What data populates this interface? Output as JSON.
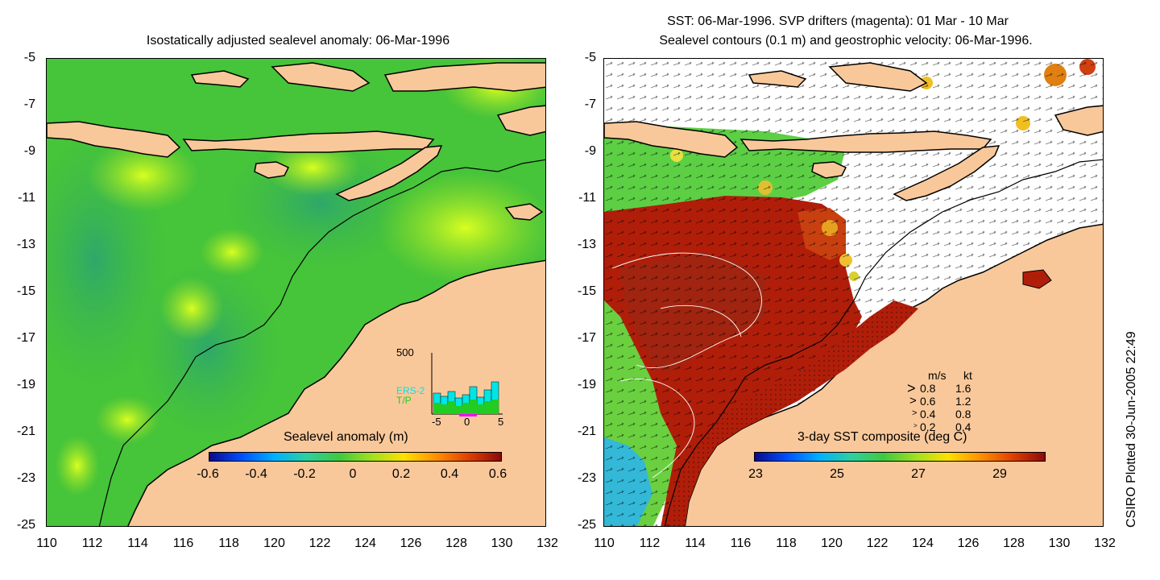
{
  "left_panel": {
    "title": "Isostatically adjusted sealevel anomaly: 06-Mar-1996",
    "colorbar": {
      "label": "Sealevel anomaly (m)",
      "ticks": [
        "-0.6",
        "-0.4",
        "-0.2",
        "0",
        "0.2",
        "0.4",
        "0.6"
      ]
    },
    "inset": {
      "ymax_label": "500",
      "series": [
        "ERS-2",
        "T/P"
      ],
      "series_colors": [
        "#00e5e5",
        "#22cc22"
      ],
      "xticks": [
        "-5",
        "0",
        "5"
      ]
    }
  },
  "right_panel": {
    "title_line1": "SST: 06-Mar-1996. SVP drifters (magenta): 01 Mar - 10 Mar",
    "title_line2": "Sealevel contours (0.1 m) and geostrophic velocity: 06-Mar-1996.",
    "colorbar": {
      "label": "3-day SST composite (deg C)",
      "ticks": [
        "23",
        "25",
        "27",
        "29"
      ]
    },
    "velocity_legend": {
      "header": [
        "m/s",
        "kt"
      ],
      "rows": [
        [
          "0.8",
          "1.6"
        ],
        [
          "0.6",
          "1.2"
        ],
        [
          "0.4",
          "0.8"
        ],
        [
          "0.2",
          "0.4"
        ]
      ]
    }
  },
  "axes": {
    "y_ticks": [
      "-5",
      "-7",
      "-9",
      "-11",
      "-13",
      "-15",
      "-17",
      "-19",
      "-21",
      "-23",
      "-25"
    ],
    "x_ticks": [
      "110",
      "112",
      "114",
      "116",
      "118",
      "120",
      "122",
      "124",
      "126",
      "128",
      "130",
      "132"
    ]
  },
  "footer": {
    "credit": "CSIRO Plotted 30-Jun-2005 22:49"
  },
  "colors": {
    "land": "#f9c89a",
    "ocean_green": "#33cc33",
    "sst_red": "#b01e0a",
    "coast": "#000000"
  }
}
